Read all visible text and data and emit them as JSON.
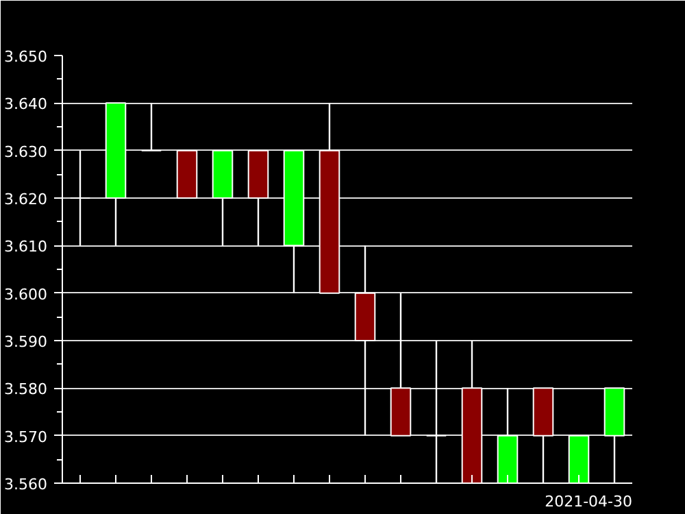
{
  "chart_data": {
    "type": "candlestick",
    "categories": [
      null,
      null,
      null,
      null,
      null,
      null,
      null,
      null,
      null,
      null,
      null,
      null,
      null,
      null,
      null,
      null
    ],
    "ohlc": [
      [
        3.62,
        3.63,
        3.61,
        3.62
      ],
      [
        3.62,
        3.64,
        3.61,
        3.64
      ],
      [
        3.63,
        3.64,
        3.63,
        3.63
      ],
      [
        3.63,
        3.63,
        3.62,
        3.62
      ],
      [
        3.62,
        3.63,
        3.61,
        3.63
      ],
      [
        3.63,
        3.63,
        3.61,
        3.62
      ],
      [
        3.61,
        3.63,
        3.6,
        3.63
      ],
      [
        3.63,
        3.64,
        3.6,
        3.6
      ],
      [
        3.6,
        3.61,
        3.57,
        3.59
      ],
      [
        3.58,
        3.6,
        3.57,
        3.57
      ],
      [
        3.57,
        3.59,
        3.56,
        3.57
      ],
      [
        3.58,
        3.59,
        3.56,
        3.56
      ],
      [
        3.56,
        3.58,
        3.56,
        3.57
      ],
      [
        3.58,
        3.58,
        3.56,
        3.57
      ],
      [
        3.56,
        3.57,
        3.56,
        3.57
      ],
      [
        3.57,
        3.58,
        3.56,
        3.58
      ]
    ],
    "colors": [
      "#ffffff",
      "#00ff00",
      "#ffffff",
      "#8b0000",
      "#00ff00",
      "#8b0000",
      "#00ff00",
      "#8b0000",
      "#8b0000",
      "#8b0000",
      "#ffffff",
      "#8b0000",
      "#00ff00",
      "#8b0000",
      "#00ff00",
      "#00ff00"
    ],
    "ylim": [
      3.56,
      3.65
    ],
    "yticks": [
      {
        "value": 3.56,
        "label": "3.560"
      },
      {
        "value": 3.565,
        "label": null
      },
      {
        "value": 3.57,
        "label": "3.570"
      },
      {
        "value": 3.575,
        "label": null
      },
      {
        "value": 3.58,
        "label": "3.580"
      },
      {
        "value": 3.585,
        "label": null
      },
      {
        "value": 3.59,
        "label": "3.590"
      },
      {
        "value": 3.595,
        "label": null
      },
      {
        "value": 3.6,
        "label": "3.600"
      },
      {
        "value": 3.605,
        "label": null
      },
      {
        "value": 3.61,
        "label": "3.610"
      },
      {
        "value": 3.615,
        "label": null
      },
      {
        "value": 3.62,
        "label": "3.620"
      },
      {
        "value": 3.625,
        "label": null
      },
      {
        "value": 3.63,
        "label": "3.630"
      },
      {
        "value": 3.635,
        "label": null
      },
      {
        "value": 3.64,
        "label": "3.640"
      },
      {
        "value": 3.645,
        "label": null
      },
      {
        "value": 3.65,
        "label": "3.650"
      }
    ],
    "grid": "y",
    "annotations": [
      "2021-04-30"
    ]
  }
}
